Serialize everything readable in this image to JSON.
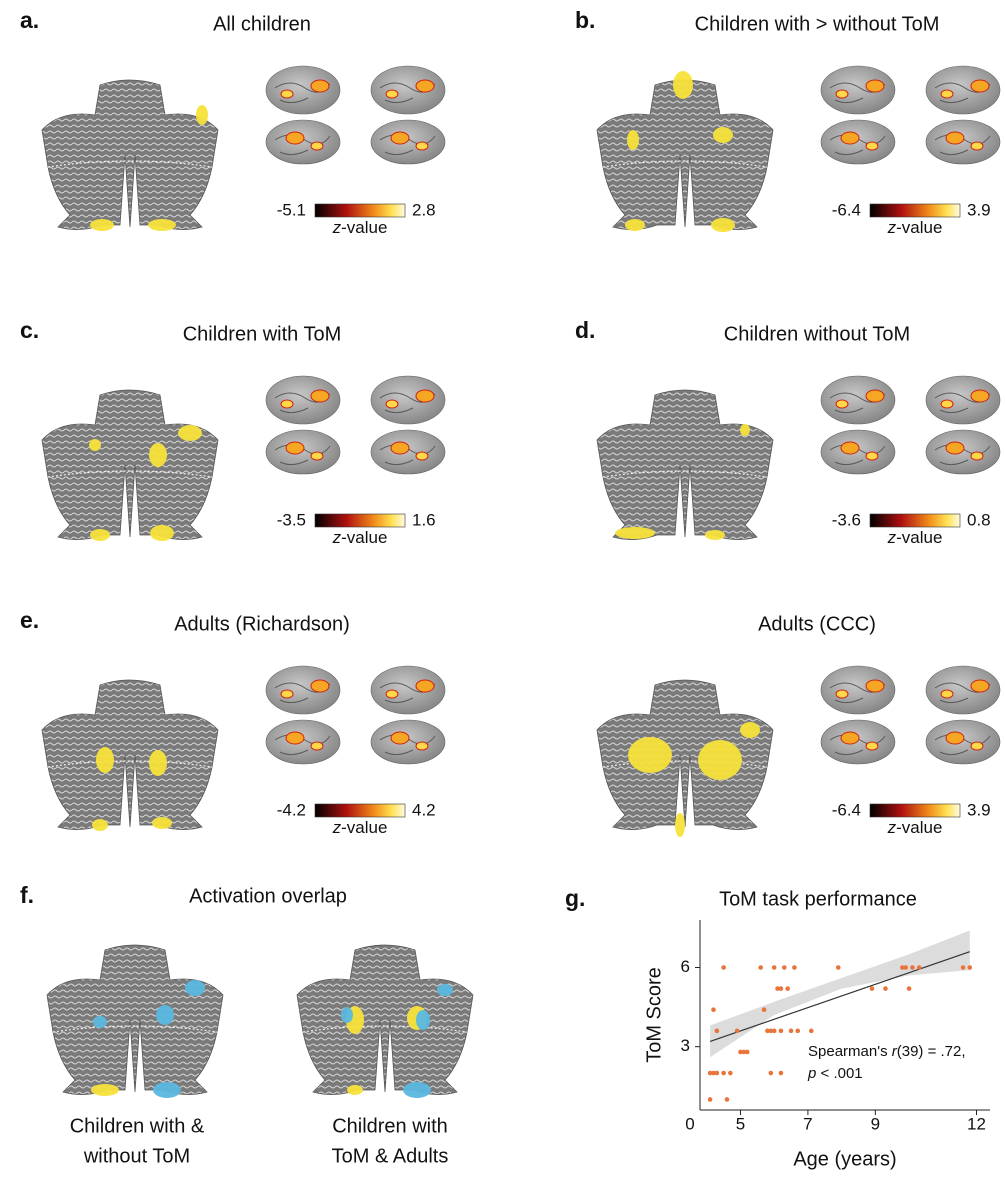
{
  "panels": [
    {
      "letter": "a.",
      "title": "All children",
      "colorbar": {
        "min": -5.1,
        "max": 2.8,
        "var": "z",
        "rest": "-value"
      }
    },
    {
      "letter": "b.",
      "title": "Children with > without ToM",
      "colorbar": {
        "min": -6.4,
        "max": 3.9,
        "var": "z",
        "rest": "-value"
      }
    },
    {
      "letter": "c.",
      "title": "Children with ToM",
      "colorbar": {
        "min": -3.5,
        "max": 1.6,
        "var": "z",
        "rest": "-value"
      }
    },
    {
      "letter": "d.",
      "title": "Children without ToM",
      "colorbar": {
        "min": -3.6,
        "max": 0.8,
        "var": "z",
        "rest": "-value"
      }
    },
    {
      "letter": "e.",
      "title": "Adults (Richardson)",
      "colorbar": {
        "min": -4.2,
        "max": 4.2,
        "var": "z",
        "rest": "-value"
      }
    },
    {
      "title": "Adults (CCC)",
      "colorbar": {
        "min": -6.4,
        "max": 3.9,
        "var": "z",
        "rest": "-value"
      }
    }
  ],
  "overlap": {
    "letter": "f.",
    "title": "Activation overlap",
    "captions": [
      [
        "Children with &",
        "without ToM"
      ],
      [
        "Children with",
        "ToM & Adults"
      ]
    ]
  },
  "chart_data": {
    "type": "scatter",
    "letter": "g.",
    "title": "ToM task performance",
    "x_label": "Age (years)",
    "y_label": "ToM Score",
    "corner_label": "0",
    "color": "#e8743b",
    "x": [
      4.1,
      4.1,
      4.2,
      4.3,
      4.5,
      4.6,
      4.7,
      4.2,
      4.3,
      4.5,
      4.9,
      5.0,
      5.1,
      5.2,
      5.6,
      5.7,
      5.8,
      5.9,
      6.0,
      6.1,
      6.2,
      6.2,
      6.3,
      6.4,
      6.5,
      6.6,
      6.7,
      6.2,
      7.1,
      7.9,
      8.9,
      9.3,
      9.8,
      9.9,
      10.0,
      10.1,
      10.3,
      11.6,
      11.8,
      6.0,
      5.9
    ],
    "values": [
      1,
      2,
      2,
      2,
      2,
      1,
      2,
      4.4,
      3.6,
      6,
      3.6,
      2.8,
      2.8,
      2.8,
      6,
      4.4,
      3.6,
      3.6,
      6,
      5.2,
      3.6,
      5.2,
      6,
      5.2,
      3.6,
      6,
      3.6,
      2,
      3.6,
      6,
      5.2,
      5.2,
      6,
      6,
      5.2,
      6,
      6,
      6,
      6,
      3.6,
      2
    ],
    "fit": {
      "x": [
        4.1,
        11.8
      ],
      "values": [
        3.2,
        6.6
      ]
    },
    "band": {
      "x": [
        4.1,
        6,
        8,
        10,
        11.8
      ],
      "lower": [
        2.6,
        4.2,
        5.2,
        5.7,
        5.9
      ],
      "upper": [
        3.8,
        4.7,
        5.6,
        6.5,
        7.4
      ]
    },
    "xlim": [
      3.8,
      12.4
    ],
    "ylim": [
      0.6,
      7.8
    ],
    "xticks": [
      5,
      7,
      9,
      12
    ],
    "yticks": [
      3,
      6
    ],
    "annotation": [
      [
        "Spearman's ",
        "r",
        "(39) = .72,"
      ],
      [
        "p",
        " < .001"
      ]
    ]
  }
}
